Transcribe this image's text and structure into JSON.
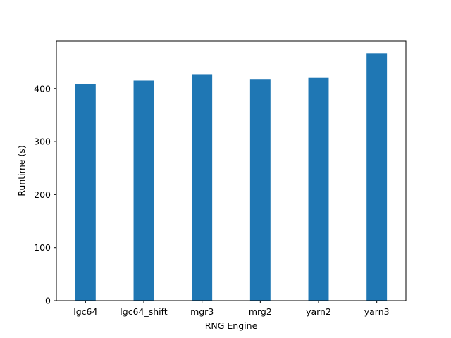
{
  "chart_data": {
    "type": "bar",
    "title": "",
    "xlabel": "RNG Engine",
    "ylabel": "Runtime (s)",
    "categories": [
      "lgc64",
      "lgc64_shift",
      "mgr3",
      "mrg2",
      "yarn2",
      "yarn3"
    ],
    "values": [
      409,
      415,
      427,
      418,
      420,
      467
    ],
    "ylim": [
      0,
      490
    ],
    "yticks": [
      0,
      100,
      200,
      300,
      400
    ],
    "bar_color": "#1f77b4",
    "grid": false,
    "legend": "none"
  }
}
